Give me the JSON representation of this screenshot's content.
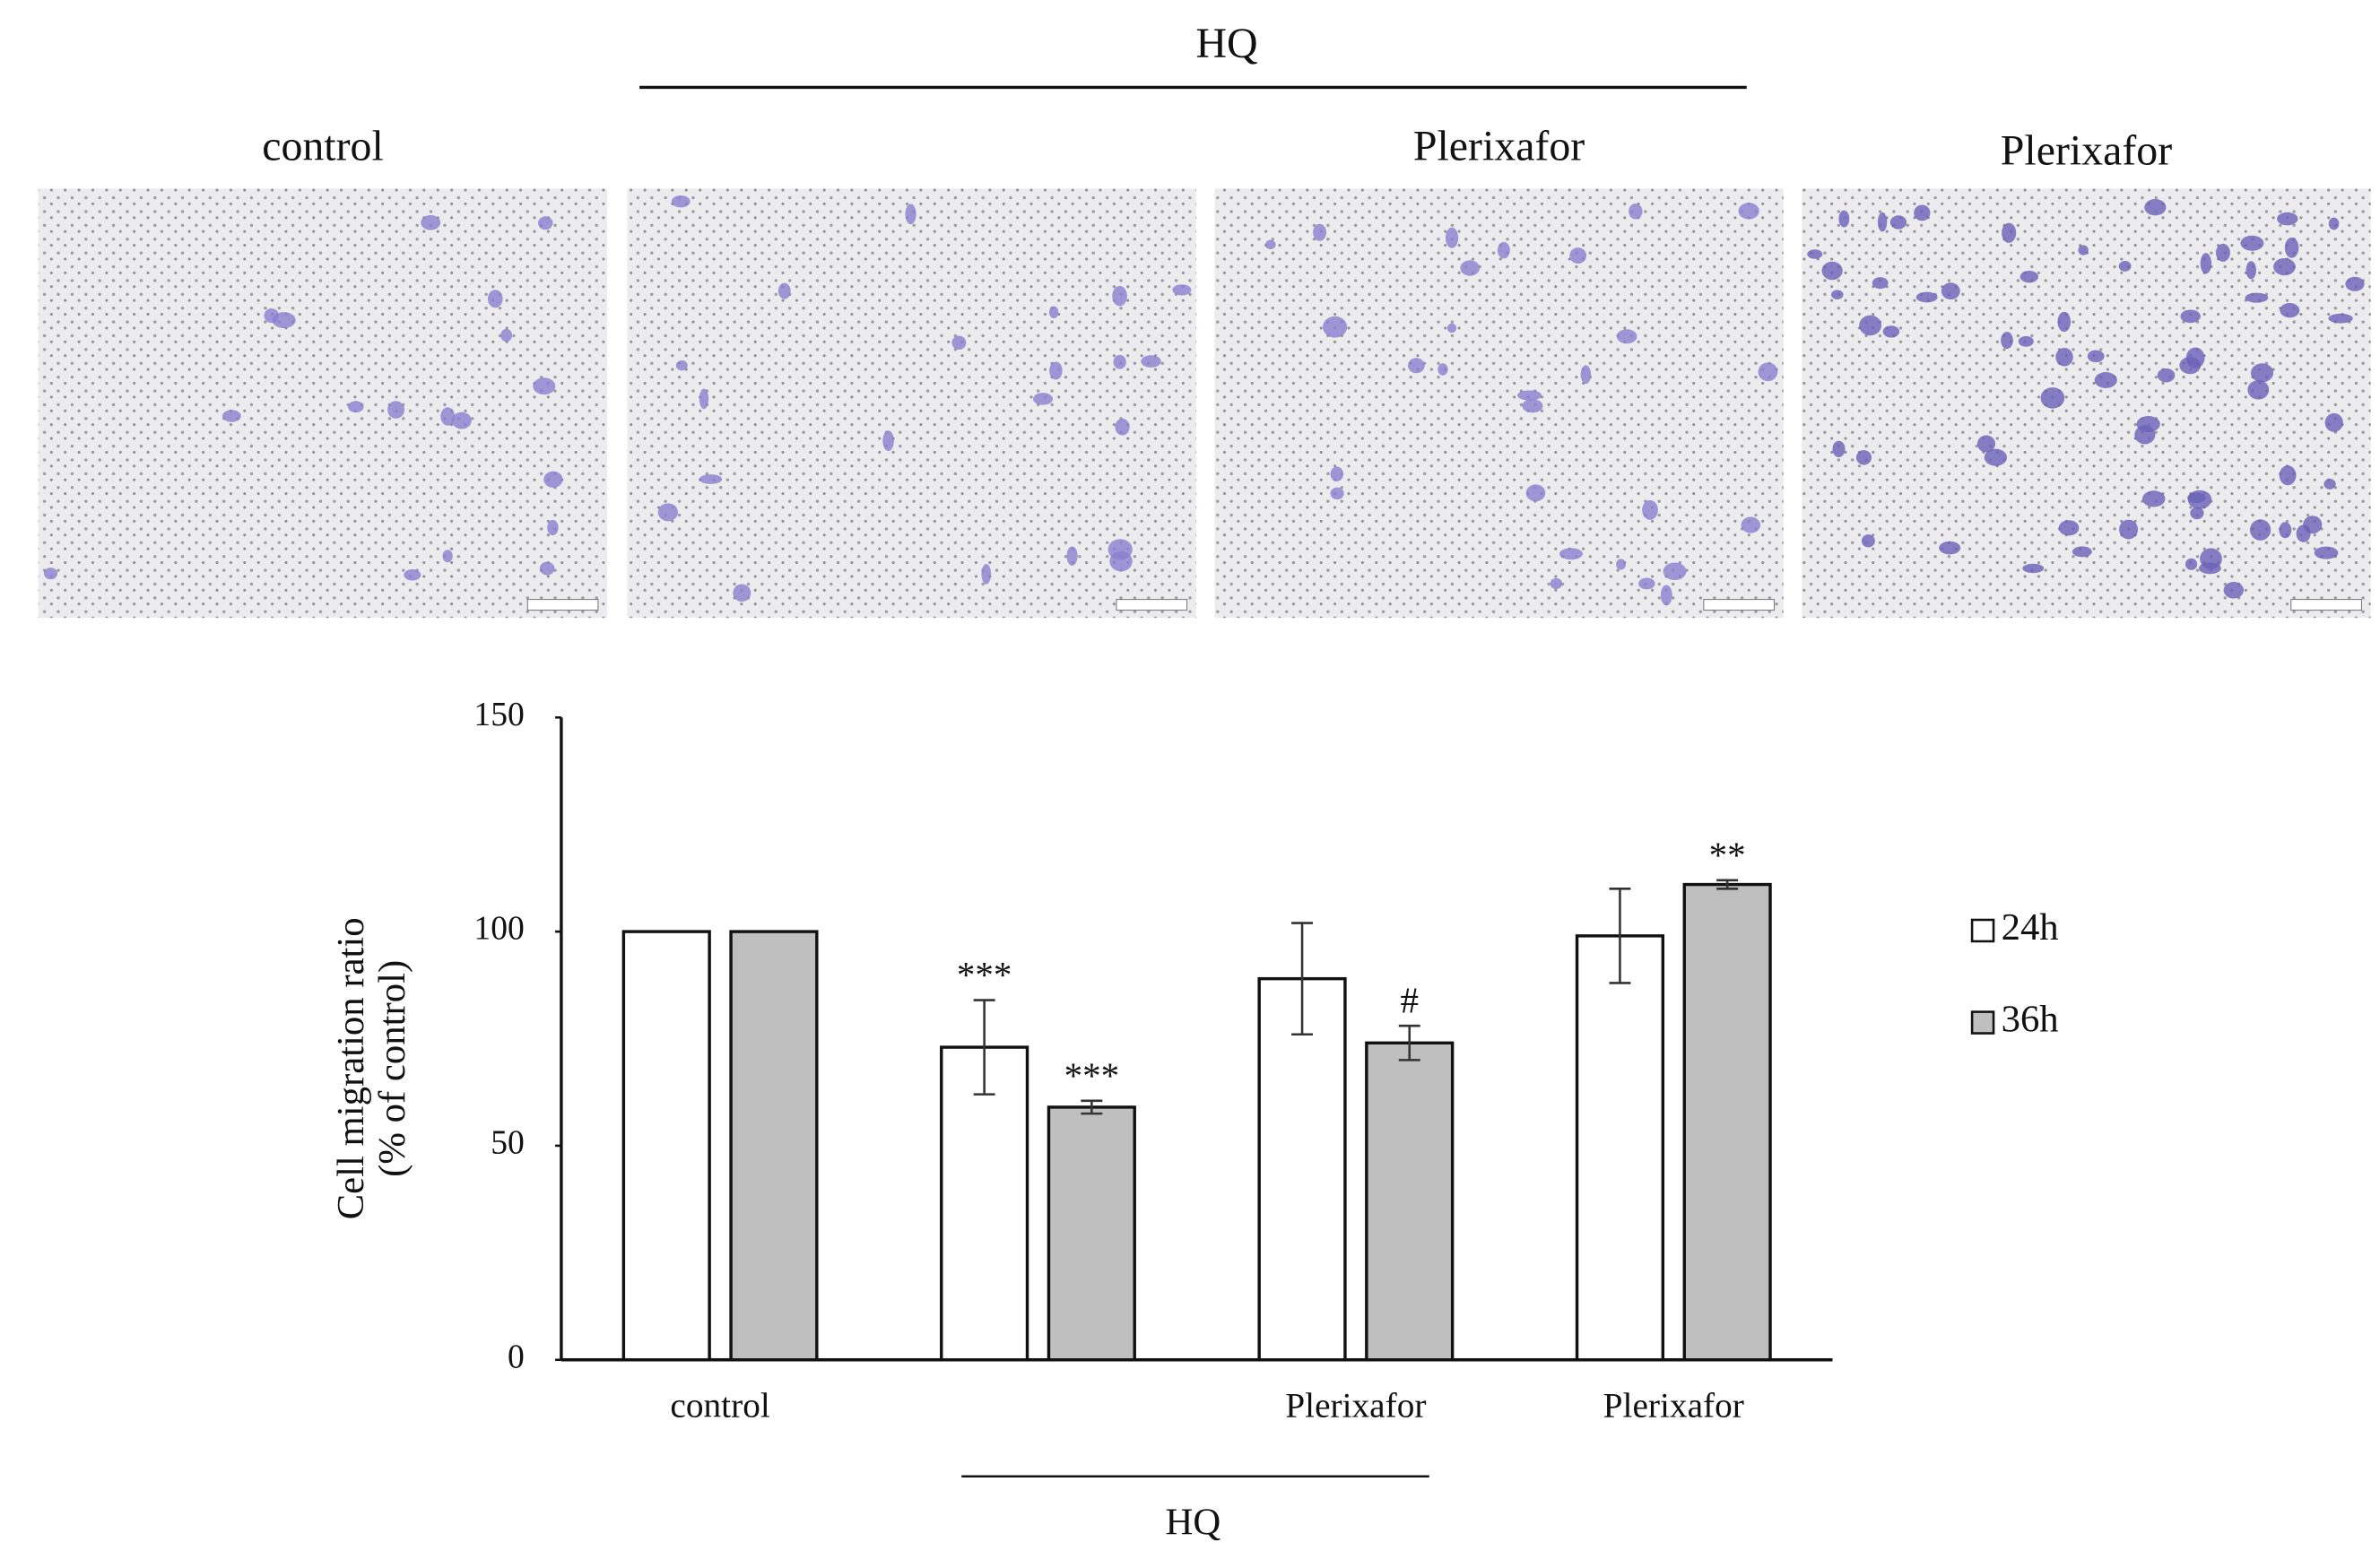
{
  "figure": {
    "treatment_label": "HQ",
    "panel_labels": [
      "control",
      null,
      "Plerixafor",
      "Plerixafor"
    ]
  },
  "chart_data": {
    "type": "bar",
    "categories": [
      "control",
      null,
      "Plerixafor",
      "Plerixafor"
    ],
    "group_label": "HQ",
    "ylabel": [
      "Cell migration ratio",
      "(% of control)"
    ],
    "ylim": [
      0,
      150
    ],
    "yticks": [
      0,
      50,
      100,
      150
    ],
    "series": [
      {
        "name": "24h",
        "color": "#ffffff",
        "values": [
          100,
          73,
          89,
          99
        ],
        "errors": [
          0,
          11,
          13,
          11
        ],
        "significance": [
          null,
          "***",
          null,
          null
        ]
      },
      {
        "name": "36h",
        "color": "#bfbfbf",
        "values": [
          100,
          59,
          74,
          111
        ],
        "errors": [
          0,
          1.5,
          4,
          1
        ],
        "significance": [
          null,
          "***",
          "#",
          "**"
        ]
      }
    ]
  }
}
